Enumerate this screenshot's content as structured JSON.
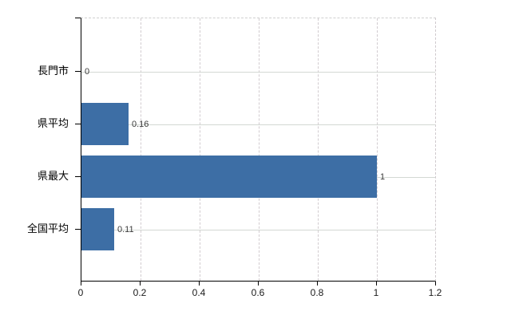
{
  "chart_data": {
    "type": "bar",
    "orientation": "horizontal",
    "title": "",
    "categories": [
      "長門市",
      "県平均",
      "県最大",
      "全国平均"
    ],
    "values": [
      0,
      0.16,
      1,
      0.11
    ],
    "value_labels": [
      "0",
      "0.16",
      "1",
      "0.11"
    ],
    "x_tick_values": [
      0,
      0.2,
      0.4,
      0.6,
      0.8,
      1,
      1.2
    ],
    "x_tick_labels": [
      "0",
      "0.2",
      "0.4",
      "0.6",
      "0.8",
      "1",
      "1.2"
    ],
    "xlim": [
      0,
      1.2
    ],
    "grid": true,
    "legend_position": "none",
    "colors": {
      "bar": "#3d6ea5",
      "grid_horizontal": "#d3d8d3",
      "grid_vertical": "#d2ccd0",
      "axis": "#000000",
      "text": "#000000"
    }
  }
}
